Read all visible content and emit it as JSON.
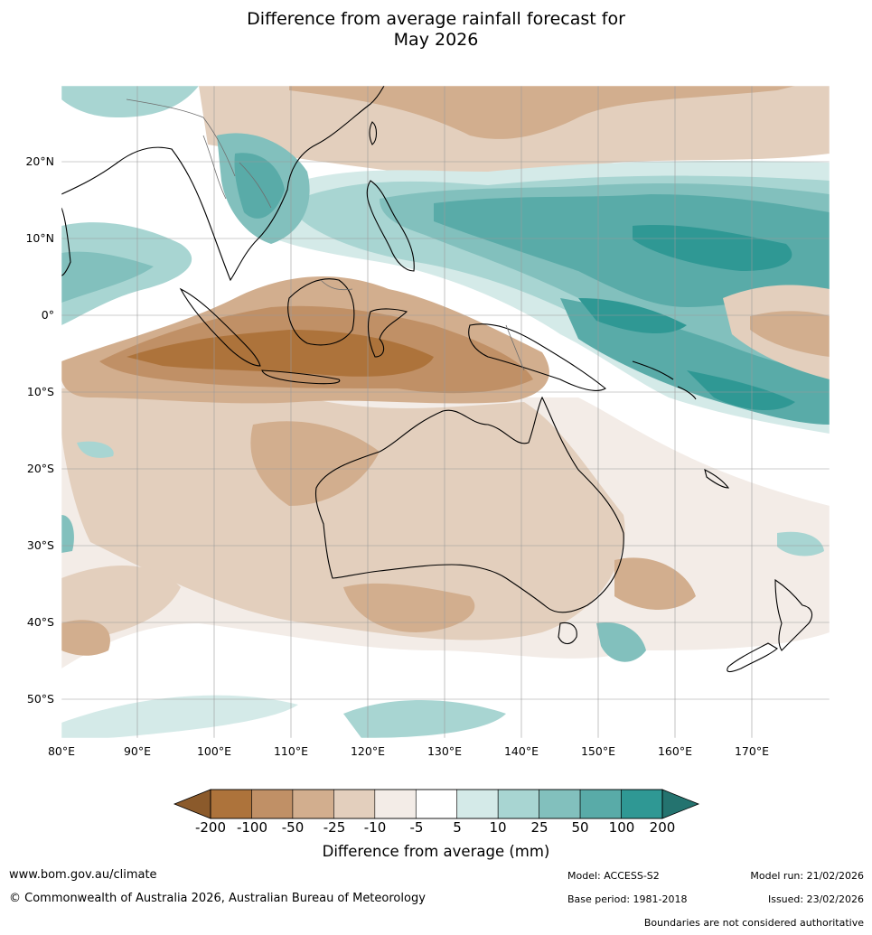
{
  "title": {
    "line1": "Difference from average rainfall forecast for",
    "line2": "May 2026"
  },
  "axes": {
    "lat_ticks": [
      "20°N",
      "10°N",
      "0°",
      "10°S",
      "20°S",
      "30°S",
      "40°S",
      "50°S"
    ],
    "lon_ticks": [
      "80°E",
      "90°E",
      "100°E",
      "110°E",
      "120°E",
      "130°E",
      "140°E",
      "150°E",
      "160°E",
      "170°E"
    ]
  },
  "legend": {
    "title": "Difference from average (mm)",
    "labels": [
      "-200",
      "-100",
      "-50",
      "-25",
      "-10",
      "-5",
      "5",
      "10",
      "25",
      "50",
      "100",
      "200"
    ],
    "colors": [
      "#ad733b",
      "#c09066",
      "#d2ae8e",
      "#e3cfbd",
      "#f3ece7",
      "#ffffff",
      "#d4eae8",
      "#a8d5d2",
      "#82c0bd",
      "#59aba8",
      "#2f9894"
    ],
    "low_end_color": "#8b5a2b",
    "high_end_color": "#24736f"
  },
  "footer": {
    "url": "www.bom.gov.au/climate",
    "copyright": "© Commonwealth of Australia 2026, Australian Bureau of Meteorology",
    "model": "Model: ACCESS-S2",
    "base_period": "Base period: 1981-2018",
    "model_run": "Model run: 21/02/2026",
    "issued": "Issued: 23/02/2026",
    "disclaimer": "Boundaries are not considered authoritative"
  }
}
